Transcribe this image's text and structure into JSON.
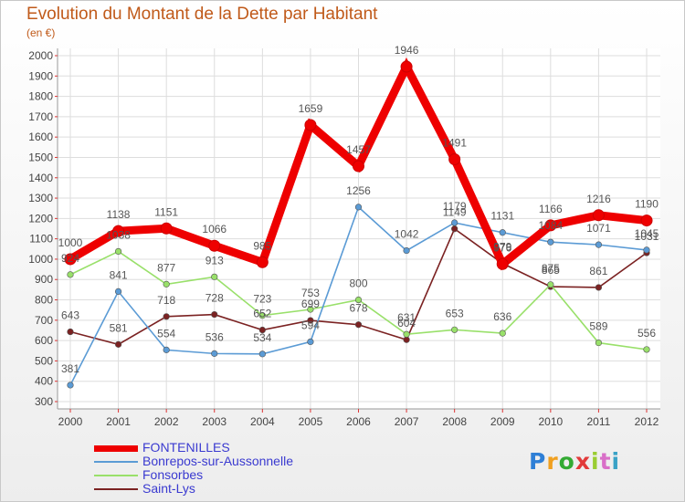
{
  "chart_data": {
    "type": "line",
    "title": "Evolution du Montant de la Dette par Habitant",
    "subtitle": "(en €)",
    "x": [
      "2000",
      "2001",
      "2002",
      "2003",
      "2004",
      "2005",
      "2006",
      "2007",
      "2008",
      "2009",
      "2010",
      "2011",
      "2012"
    ],
    "ylim": [
      300,
      2000
    ],
    "yticks": [
      300,
      400,
      500,
      600,
      700,
      800,
      900,
      1000,
      1100,
      1200,
      1300,
      1400,
      1500,
      1600,
      1700,
      1800,
      1900,
      2000
    ],
    "grid": true,
    "legend_position": "bottom-left",
    "series": [
      {
        "name": "FONTENILLES",
        "color": "#ee0000",
        "values": [
          1000,
          1138,
          1151,
          1066,
          985,
          1659,
          1457,
          1946,
          1491,
          976,
          1166,
          1216,
          1190
        ]
      },
      {
        "name": "Bonrepos-sur-Aussonnelle",
        "color": "#5b9bd5",
        "values": [
          381,
          841,
          554,
          536,
          534,
          594,
          1256,
          1042,
          1179,
          1131,
          1084,
          1071,
          1045
        ]
      },
      {
        "name": "Fonsorbes",
        "color": "#99e06a",
        "values": [
          924,
          1038,
          877,
          913,
          723,
          753,
          800,
          631,
          653,
          636,
          875,
          589,
          556
        ]
      },
      {
        "name": "Saint-Lys",
        "color": "#7b2222",
        "values": [
          643,
          581,
          718,
          728,
          652,
          699,
          678,
          604,
          1149,
          979,
          865,
          861,
          1031
        ]
      }
    ]
  },
  "logo": {
    "letters": [
      "P",
      "r",
      "o",
      "x",
      "i",
      "t",
      "i"
    ],
    "colors": [
      "#2e7fd6",
      "#f0a020",
      "#33aa33",
      "#e23a3a",
      "#9acd32",
      "#d96fc8",
      "#39a2c6"
    ]
  }
}
